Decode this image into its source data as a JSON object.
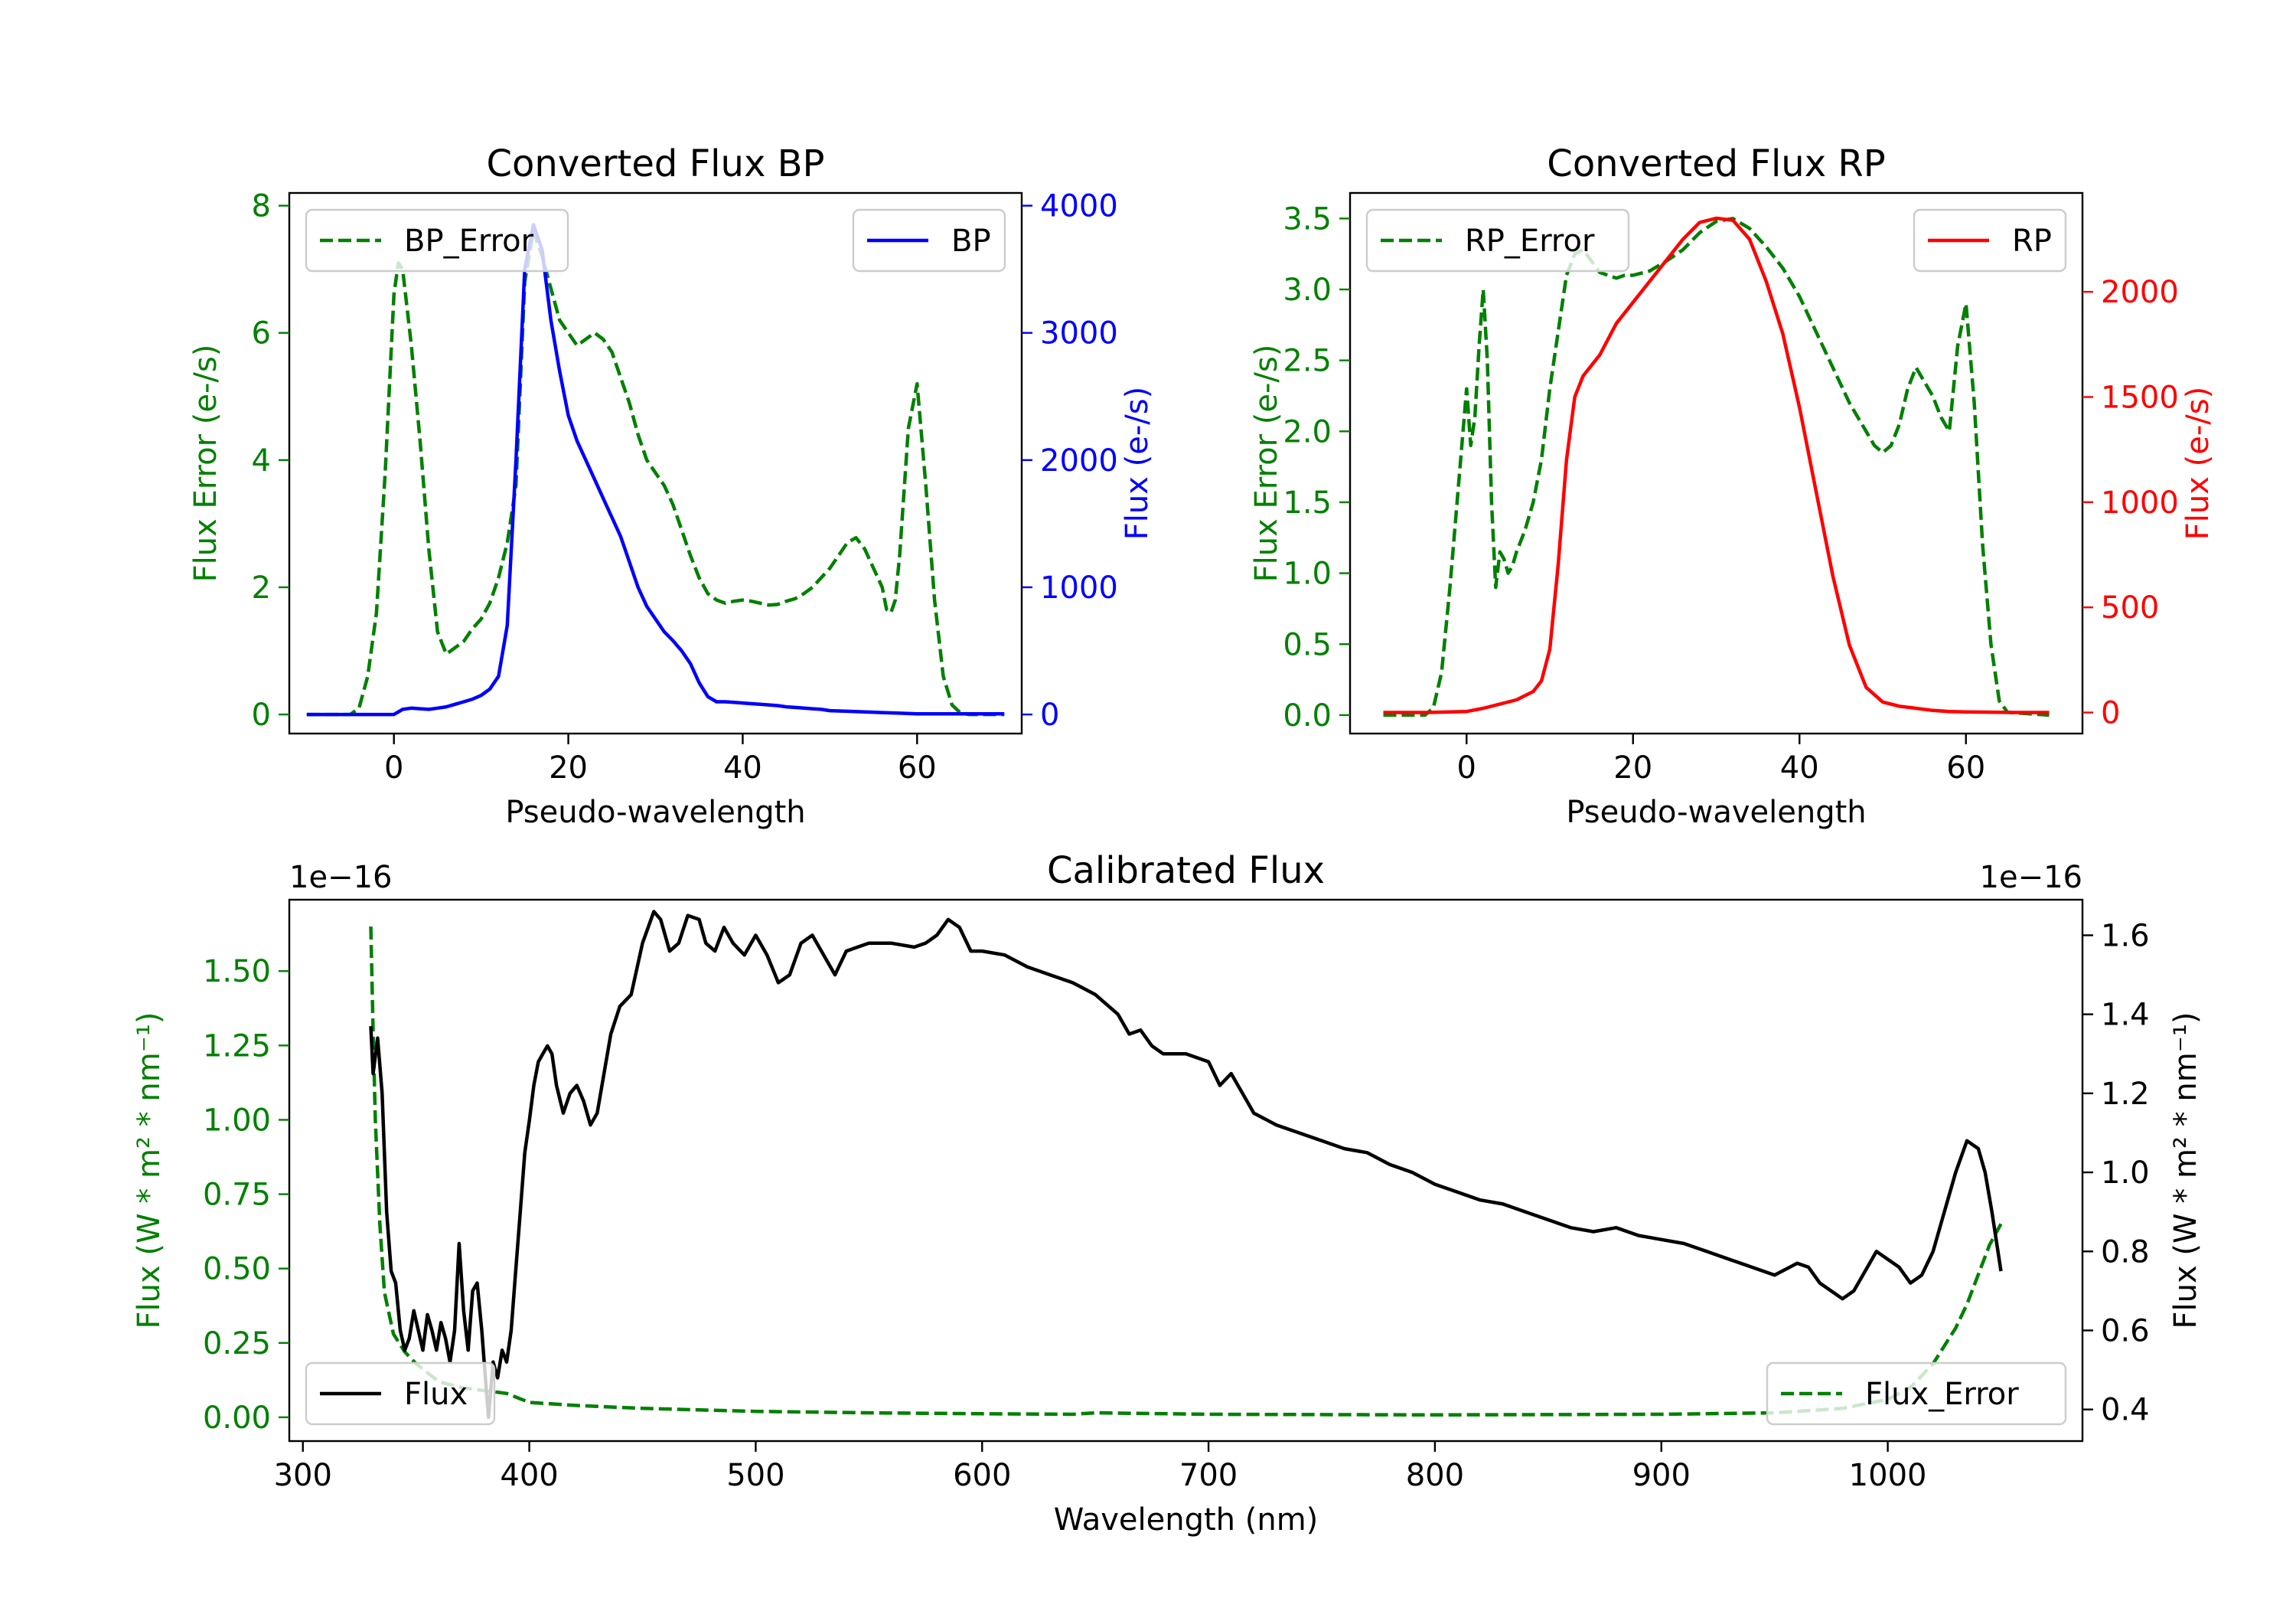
{
  "colors": {
    "green": "#008000",
    "blue": "#0000ff",
    "red": "#ff0000",
    "black": "#000000"
  },
  "chart_data": [
    {
      "id": "bp",
      "type": "line",
      "title": "Converted Flux BP",
      "xlabel": "Pseudo-wavelength",
      "ylabel_left": "Flux Error (e-/s)",
      "ylabel_right": "Flux (e-/s)",
      "xlim": [
        -12,
        72
      ],
      "ylim_left": [
        -0.3,
        8.2
      ],
      "ylim_right": [
        -150,
        4100
      ],
      "xticks": [
        0,
        20,
        40,
        60
      ],
      "yticks_left": [
        0,
        2,
        4,
        6,
        8
      ],
      "yticks_right": [
        0,
        1000,
        2000,
        3000,
        4000
      ],
      "series": [
        {
          "name": "BP_Error",
          "axis": "left",
          "color": "#008000",
          "style": "dashed",
          "legend": "top-left",
          "x": [
            -10,
            -5,
            -4,
            -3,
            -2,
            -1,
            0,
            0.5,
            1,
            2,
            3,
            4,
            5,
            6,
            7,
            8,
            9,
            10,
            11,
            12,
            13,
            14,
            15,
            16,
            17,
            18,
            19,
            20,
            21,
            22,
            23,
            24,
            25,
            26,
            27,
            28,
            29,
            30,
            31,
            32,
            33,
            34,
            35,
            36,
            37,
            38,
            39,
            40,
            41,
            42,
            43,
            44,
            45,
            46,
            47,
            48,
            49,
            50,
            51,
            52,
            53,
            54,
            55,
            56,
            56.5,
            57,
            57.5,
            58,
            59,
            60,
            61,
            62,
            63,
            64,
            65,
            66,
            70
          ],
          "y": [
            0,
            0,
            0.1,
            0.6,
            1.6,
            3.8,
            6.6,
            7.1,
            7.0,
            5.8,
            4.3,
            2.6,
            1.3,
            0.95,
            1.05,
            1.15,
            1.35,
            1.5,
            1.75,
            2.15,
            2.7,
            3.6,
            6.8,
            7.6,
            7.2,
            6.7,
            6.2,
            6.0,
            5.8,
            5.9,
            6.0,
            5.9,
            5.7,
            5.3,
            4.9,
            4.4,
            4.0,
            3.8,
            3.6,
            3.3,
            2.9,
            2.5,
            2.15,
            1.9,
            1.8,
            1.75,
            1.78,
            1.8,
            1.78,
            1.75,
            1.72,
            1.73,
            1.78,
            1.82,
            1.9,
            2.0,
            2.15,
            2.3,
            2.5,
            2.7,
            2.78,
            2.6,
            2.3,
            2.0,
            1.65,
            1.6,
            1.8,
            2.5,
            4.5,
            5.2,
            3.6,
            1.8,
            0.6,
            0.15,
            0.02,
            0,
            0
          ]
        },
        {
          "name": "BP",
          "axis": "right",
          "color": "#0000ff",
          "style": "solid",
          "legend": "top-right",
          "x": [
            -10,
            -5,
            0,
            1,
            2,
            3,
            4,
            5,
            6,
            7,
            8,
            9,
            10,
            11,
            12,
            13,
            14,
            15,
            16,
            17,
            18,
            19,
            20,
            21,
            22,
            23,
            24,
            25,
            26,
            27,
            28,
            29,
            30,
            31,
            32,
            33,
            34,
            35,
            36,
            37,
            38,
            39,
            40,
            41,
            42,
            43,
            44,
            45,
            46,
            47,
            48,
            49,
            50,
            52,
            54,
            56,
            58,
            60,
            62,
            64,
            66,
            68,
            70
          ],
          "y": [
            0,
            0,
            0,
            40,
            50,
            45,
            40,
            50,
            60,
            80,
            100,
            120,
            150,
            200,
            300,
            700,
            2000,
            3500,
            3850,
            3650,
            3100,
            2700,
            2350,
            2150,
            2000,
            1850,
            1700,
            1550,
            1400,
            1200,
            1000,
            850,
            750,
            650,
            580,
            500,
            400,
            250,
            140,
            100,
            100,
            95,
            90,
            85,
            80,
            75,
            70,
            60,
            55,
            50,
            45,
            40,
            30,
            25,
            20,
            15,
            10,
            5,
            5,
            5,
            5,
            5,
            5
          ]
        }
      ]
    },
    {
      "id": "rp",
      "type": "line",
      "title": "Converted Flux RP",
      "xlabel": "Pseudo-wavelength",
      "ylabel_left": "Flux Error (e-/s)",
      "ylabel_right": "Flux (e-/s)",
      "xlim": [
        -14,
        74
      ],
      "ylim_left": [
        -0.13,
        3.68
      ],
      "ylim_right": [
        -100,
        2470
      ],
      "xticks": [
        0,
        20,
        40,
        60
      ],
      "yticks_left": [
        0.0,
        0.5,
        1.0,
        1.5,
        2.0,
        2.5,
        3.0,
        3.5
      ],
      "yticks_right": [
        0,
        500,
        1000,
        1500,
        2000
      ],
      "series": [
        {
          "name": "RP_Error",
          "axis": "left",
          "color": "#008000",
          "style": "dashed",
          "legend": "top-left",
          "x": [
            -10,
            -5,
            -4,
            -3,
            -2,
            -1,
            0,
            0.5,
            1,
            1.5,
            2,
            2.5,
            3,
            3.5,
            4,
            4.5,
            5,
            5.5,
            6,
            7,
            8,
            9,
            10,
            11,
            12,
            13,
            14,
            15,
            16,
            17,
            18,
            19,
            20,
            22,
            24,
            26,
            28,
            30,
            32,
            34,
            36,
            38,
            40,
            42,
            44,
            46,
            48,
            49,
            50,
            51,
            52,
            53,
            54,
            55,
            56,
            57,
            58,
            59,
            60,
            61,
            62,
            63,
            64,
            65,
            70
          ],
          "y": [
            0,
            0,
            0.05,
            0.3,
            0.9,
            1.6,
            2.3,
            1.9,
            2.1,
            2.6,
            3.0,
            2.5,
            1.5,
            0.9,
            1.15,
            1.1,
            1.0,
            1.05,
            1.15,
            1.3,
            1.5,
            1.8,
            2.3,
            2.7,
            3.1,
            3.25,
            3.28,
            3.2,
            3.12,
            3.1,
            3.08,
            3.1,
            3.1,
            3.13,
            3.2,
            3.28,
            3.4,
            3.48,
            3.5,
            3.43,
            3.3,
            3.15,
            2.95,
            2.7,
            2.45,
            2.2,
            2.0,
            1.9,
            1.85,
            1.9,
            2.05,
            2.3,
            2.45,
            2.35,
            2.25,
            2.1,
            2.0,
            2.6,
            2.9,
            2.2,
            1.2,
            0.5,
            0.1,
            0.02,
            0
          ]
        },
        {
          "name": "RP",
          "axis": "right",
          "color": "#ff0000",
          "style": "solid",
          "legend": "top-right",
          "x": [
            -10,
            -5,
            0,
            2,
            4,
            6,
            8,
            9,
            10,
            11,
            12,
            13,
            14,
            16,
            18,
            20,
            22,
            24,
            26,
            28,
            30,
            32,
            34,
            36,
            38,
            40,
            42,
            44,
            46,
            48,
            50,
            52,
            54,
            56,
            58,
            60,
            62,
            64,
            66,
            70
          ],
          "y": [
            0,
            0,
            5,
            20,
            40,
            60,
            100,
            150,
            300,
            700,
            1200,
            1500,
            1600,
            1700,
            1850,
            1950,
            2050,
            2150,
            2250,
            2330,
            2350,
            2340,
            2250,
            2050,
            1800,
            1450,
            1050,
            650,
            320,
            120,
            50,
            30,
            20,
            10,
            5,
            3,
            2,
            1,
            0,
            0
          ]
        }
      ]
    },
    {
      "id": "cal",
      "type": "line",
      "title": "Calibrated Flux",
      "xlabel": "Wavelength (nm)",
      "ylabel_left": "Flux (W * m² * nm⁻¹)",
      "ylabel_right": "Flux (W * m² * nm⁻¹)",
      "offset_left": "1e−16",
      "offset_right": "1e−16",
      "xlim": [
        294,
        1086
      ],
      "ylim_left": [
        -0.08,
        1.74
      ],
      "ylim_right": [
        0.32,
        1.69
      ],
      "xticks": [
        300,
        400,
        500,
        600,
        700,
        800,
        900,
        1000
      ],
      "yticks_left": [
        0.0,
        0.25,
        0.5,
        0.75,
        1.0,
        1.25,
        1.5
      ],
      "yticks_left_labels": [
        "0.00",
        "0.25",
        "0.50",
        "0.75",
        "1.00",
        "1.25",
        "1.50"
      ],
      "yticks_right": [
        0.4,
        0.6,
        0.8,
        1.0,
        1.2,
        1.4,
        1.6
      ],
      "series": [
        {
          "name": "Flux_Error",
          "axis": "left",
          "color": "#008000",
          "style": "dashed",
          "legend": "bottom-right",
          "x": [
            330,
            331,
            332,
            334,
            336,
            340,
            345,
            350,
            355,
            360,
            370,
            380,
            390,
            400,
            420,
            450,
            500,
            550,
            600,
            640,
            650,
            700,
            800,
            900,
            950,
            980,
            1000,
            1010,
            1020,
            1030,
            1035,
            1040,
            1045,
            1050
          ],
          "y": [
            1.65,
            1.3,
            1.0,
            0.65,
            0.42,
            0.28,
            0.22,
            0.18,
            0.15,
            0.12,
            0.1,
            0.09,
            0.08,
            0.05,
            0.04,
            0.03,
            0.02,
            0.015,
            0.012,
            0.01,
            0.015,
            0.01,
            0.008,
            0.01,
            0.015,
            0.03,
            0.06,
            0.1,
            0.18,
            0.3,
            0.38,
            0.48,
            0.58,
            0.65
          ]
        },
        {
          "name": "Flux",
          "axis": "right",
          "color": "#000000",
          "style": "solid",
          "legend": "bottom-left",
          "x": [
            330,
            331,
            333,
            335,
            337,
            339,
            341,
            343,
            345,
            347,
            349,
            351,
            353,
            355,
            357,
            359,
            361,
            363,
            365,
            367,
            369,
            371,
            373,
            375,
            377,
            379,
            381,
            382,
            384,
            386,
            388,
            390,
            392,
            394,
            396,
            398,
            400,
            402,
            404,
            406,
            408,
            410,
            412,
            415,
            418,
            421,
            424,
            427,
            430,
            433,
            436,
            440,
            445,
            450,
            455,
            458,
            462,
            466,
            470,
            475,
            478,
            482,
            486,
            490,
            495,
            500,
            505,
            510,
            515,
            520,
            525,
            530,
            535,
            540,
            545,
            550,
            560,
            570,
            575,
            580,
            585,
            590,
            595,
            600,
            610,
            620,
            630,
            640,
            650,
            660,
            665,
            670,
            675,
            680,
            690,
            700,
            705,
            710,
            715,
            720,
            730,
            740,
            750,
            760,
            770,
            780,
            790,
            800,
            810,
            820,
            830,
            840,
            850,
            860,
            870,
            880,
            890,
            900,
            910,
            920,
            930,
            940,
            950,
            960,
            965,
            970,
            975,
            980,
            985,
            990,
            995,
            1000,
            1005,
            1010,
            1015,
            1020,
            1025,
            1030,
            1035,
            1040,
            1043,
            1046,
            1050
          ],
          "y": [
            1.37,
            1.25,
            1.34,
            1.2,
            0.9,
            0.75,
            0.72,
            0.6,
            0.55,
            0.58,
            0.65,
            0.6,
            0.55,
            0.64,
            0.6,
            0.55,
            0.62,
            0.58,
            0.52,
            0.6,
            0.82,
            0.65,
            0.55,
            0.7,
            0.72,
            0.6,
            0.45,
            0.38,
            0.52,
            0.48,
            0.55,
            0.52,
            0.6,
            0.75,
            0.9,
            1.05,
            1.13,
            1.22,
            1.28,
            1.3,
            1.32,
            1.3,
            1.22,
            1.15,
            1.2,
            1.22,
            1.18,
            1.12,
            1.15,
            1.25,
            1.35,
            1.42,
            1.45,
            1.58,
            1.66,
            1.64,
            1.56,
            1.58,
            1.65,
            1.64,
            1.58,
            1.56,
            1.62,
            1.58,
            1.55,
            1.6,
            1.55,
            1.48,
            1.5,
            1.58,
            1.6,
            1.55,
            1.5,
            1.56,
            1.57,
            1.58,
            1.58,
            1.57,
            1.58,
            1.6,
            1.64,
            1.62,
            1.56,
            1.56,
            1.55,
            1.52,
            1.5,
            1.48,
            1.45,
            1.4,
            1.35,
            1.36,
            1.32,
            1.3,
            1.3,
            1.28,
            1.22,
            1.25,
            1.2,
            1.15,
            1.12,
            1.1,
            1.08,
            1.06,
            1.05,
            1.02,
            1.0,
            0.97,
            0.95,
            0.93,
            0.92,
            0.9,
            0.88,
            0.86,
            0.85,
            0.86,
            0.84,
            0.83,
            0.82,
            0.8,
            0.78,
            0.76,
            0.74,
            0.77,
            0.76,
            0.72,
            0.7,
            0.68,
            0.7,
            0.75,
            0.8,
            0.78,
            0.76,
            0.72,
            0.74,
            0.8,
            0.9,
            1.0,
            1.08,
            1.06,
            1.0,
            0.9,
            0.75
          ]
        }
      ]
    }
  ]
}
